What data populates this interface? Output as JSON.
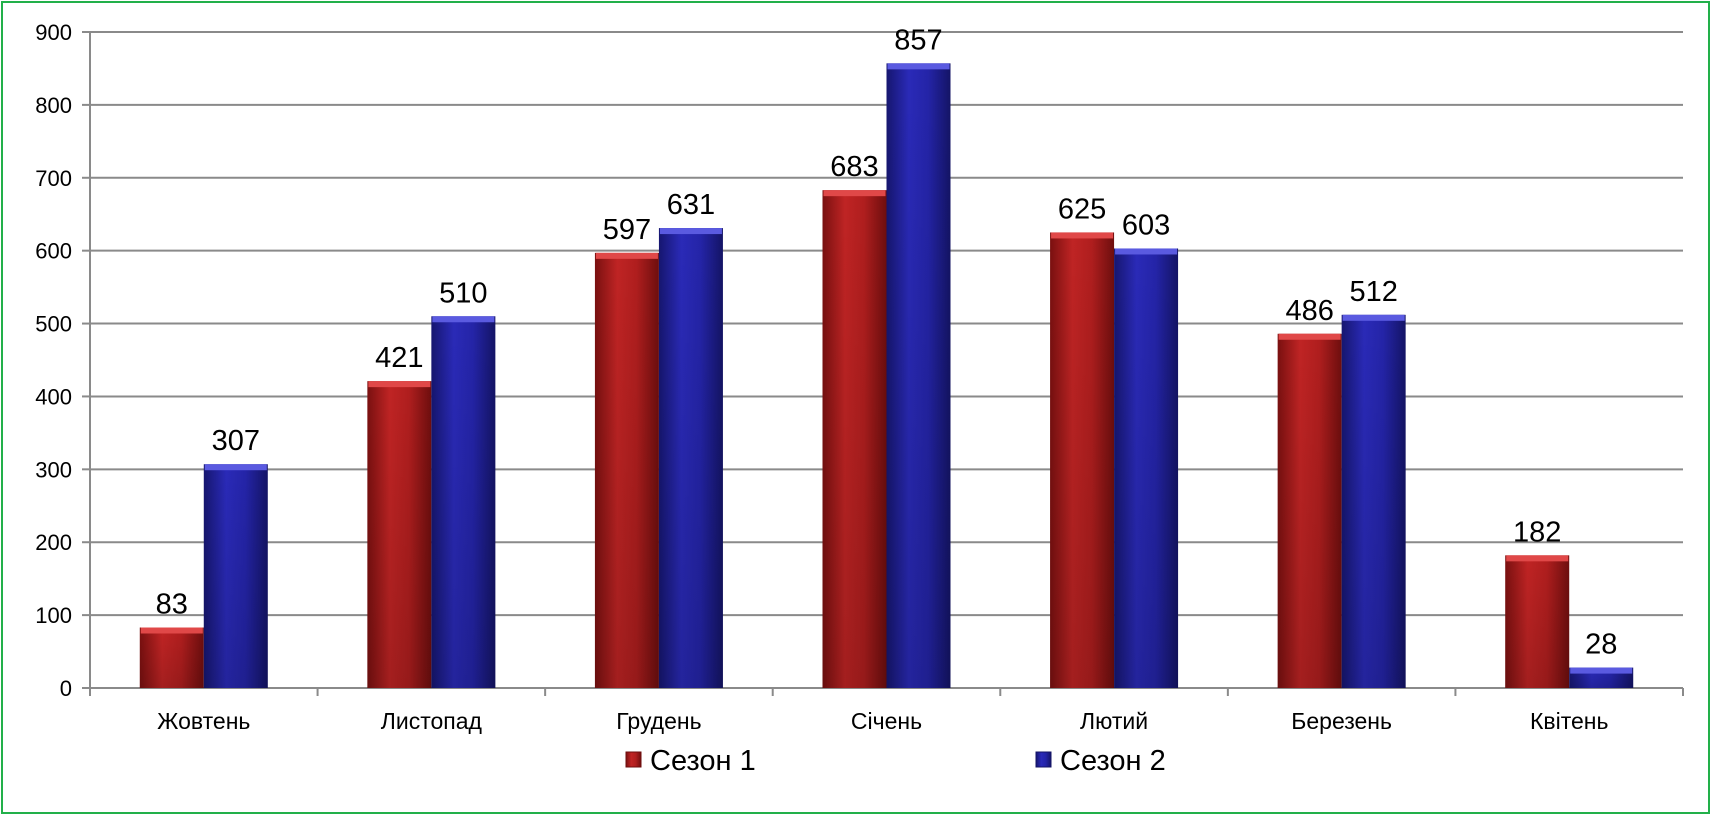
{
  "chart_data": {
    "type": "bar",
    "categories": [
      "Жовтень",
      "Листопад",
      "Грудень",
      "Січень",
      "Лютий",
      "Березень",
      "Квітень"
    ],
    "series": [
      {
        "name": "Сезон 1",
        "values": [
          83,
          421,
          597,
          683,
          625,
          486,
          182
        ],
        "color": "#b01e1e"
      },
      {
        "name": "Сезон 2",
        "values": [
          307,
          510,
          631,
          857,
          603,
          512,
          28
        ],
        "color": "#2424a8"
      }
    ],
    "yticks": [
      "0",
      "100",
      "200",
      "300",
      "400",
      "500",
      "600",
      "700",
      "800",
      "900"
    ],
    "ylim": [
      0,
      900
    ],
    "grid": true,
    "legend_position": "bottom"
  }
}
